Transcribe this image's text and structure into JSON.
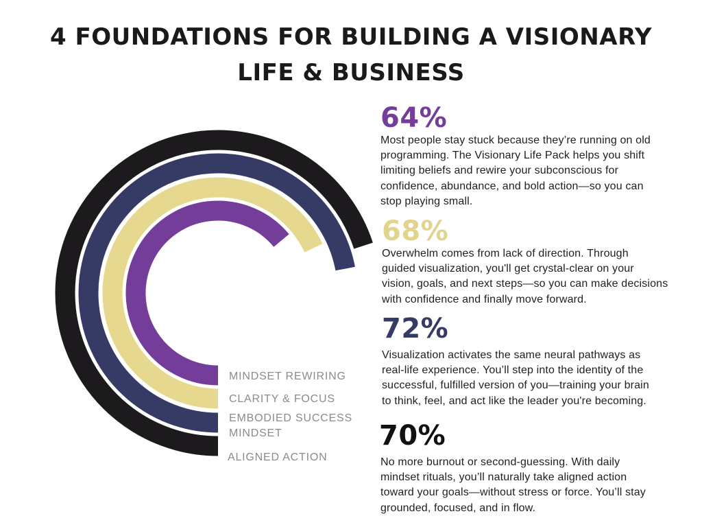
{
  "title": "4 FOUNDATIONS FOR BUILDING A VISIONARY LIFE & BUSINESS",
  "chart_data": {
    "type": "radial-bar",
    "series": [
      {
        "name": "MINDSET REWIRING",
        "value": 64,
        "color": "#733d99"
      },
      {
        "name": "CLARITY & FOCUS",
        "value": 68,
        "color": "#e6d98f"
      },
      {
        "name": "EMBODIED SUCCESS\nMINDSET",
        "value": 72,
        "color": "#353b64"
      },
      {
        "name": "ALIGNED ACTION",
        "value": 70,
        "color": "#1c1a1d"
      }
    ]
  },
  "stats": [
    {
      "value": "64%",
      "color": "#733d99",
      "text": "Most people stay stuck because they’re running on old\nprogramming. The Visionary Life Pack helps you shift\nlimiting beliefs and rewire your subconscious for\nconfidence, abundance, and bold action—so you can\nstop playing small."
    },
    {
      "value": "68%",
      "color": "#e1d48d",
      "text": "Overwhelm comes from lack of direction. Through\nguided visualization, you'll get crystal-clear on your\nvision, goals, and next steps—so you can make decisions\nwith confidence and finally move forward."
    },
    {
      "value": "72%",
      "color": "#353b64",
      "text": "Visualization activates the same neural pathways as\nreal-life experience. You’ll step into the identity of the\nsuccessful, fulfilled version of you—training your brain\nto think, feel, and act like the leader you're becoming."
    },
    {
      "value": "70%",
      "color": "#111013",
      "text": "No more burnout or second-guessing. With daily\nmindset rituals, you’ll naturally take aligned action\ntoward your goals—without stress or force. You’ll stay\ngrounded, focused, and in flow."
    }
  ]
}
